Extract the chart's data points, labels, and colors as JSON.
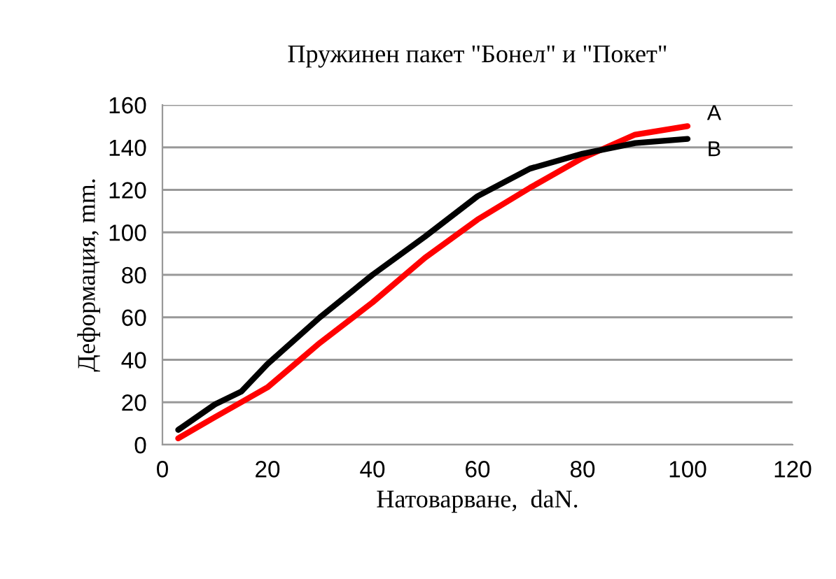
{
  "chart_data": {
    "type": "line",
    "title": "Пружинен пакет \"Бонел\" и \"Покет\"",
    "xlabel": "Натоварване,  daN.",
    "ylabel": "Деформация, mm.",
    "xlim": [
      0,
      120
    ],
    "xticks": [
      0,
      20,
      40,
      60,
      80,
      100,
      120
    ],
    "ylim": [
      0,
      160
    ],
    "yticks": [
      0,
      20,
      40,
      60,
      80,
      100,
      120,
      140,
      160
    ],
    "grid": "y",
    "legend": false,
    "series": [
      {
        "name": "A",
        "color": "#ff0000",
        "x": [
          3,
          10,
          15,
          20,
          30,
          40,
          50,
          60,
          70,
          80,
          90,
          100
        ],
        "values": [
          3,
          13,
          20,
          27,
          48,
          67,
          88,
          106,
          121,
          135,
          146,
          150
        ]
      },
      {
        "name": "B",
        "color": "#000000",
        "x": [
          3,
          10,
          15,
          20,
          30,
          40,
          50,
          60,
          70,
          80,
          90,
          100
        ],
        "values": [
          7,
          19,
          25,
          38,
          60,
          80,
          98,
          117,
          130,
          137,
          142,
          144
        ]
      }
    ]
  }
}
